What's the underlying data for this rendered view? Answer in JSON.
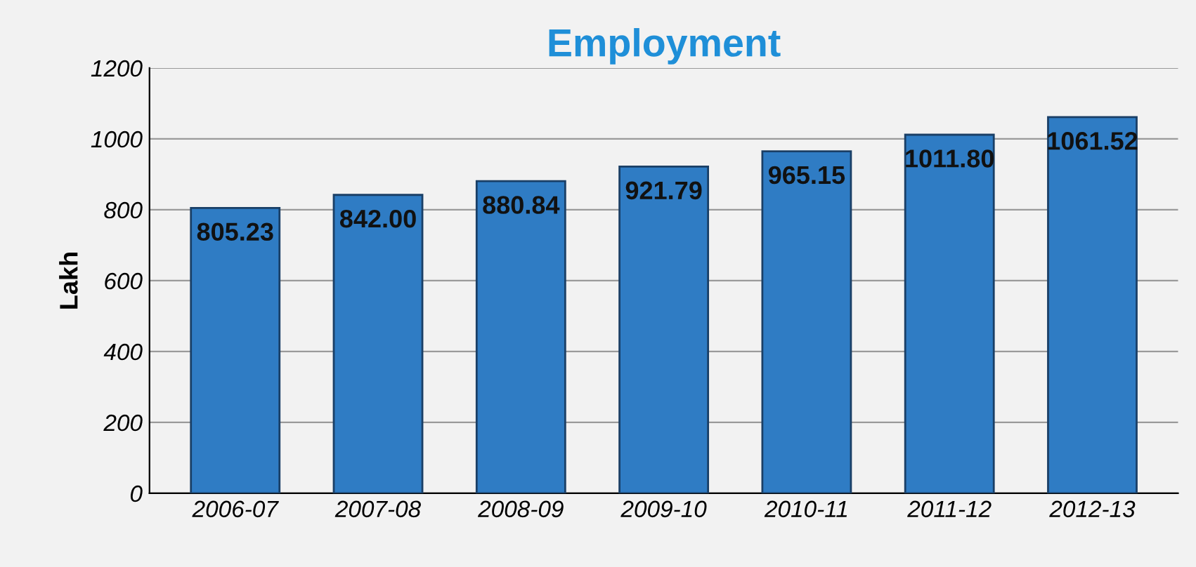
{
  "chart_data": {
    "type": "bar",
    "title": "Employment",
    "ylabel": "Lakh",
    "categories": [
      "2006-07",
      "2007-08",
      "2008-09",
      "2009-10",
      "2010-11",
      "2011-12",
      "2012-13"
    ],
    "values": [
      805.23,
      842.0,
      880.84,
      921.79,
      965.15,
      1011.8,
      1061.52
    ],
    "value_labels": [
      "805.23",
      "842.00",
      "880.84",
      "921.79",
      "965.15",
      "1011.80",
      "1061.52"
    ],
    "color": "#2f7cc4",
    "ylim": [
      0,
      1200
    ],
    "yticks": [
      0,
      200,
      400,
      600,
      800,
      1000,
      1200
    ],
    "grid": "y"
  }
}
